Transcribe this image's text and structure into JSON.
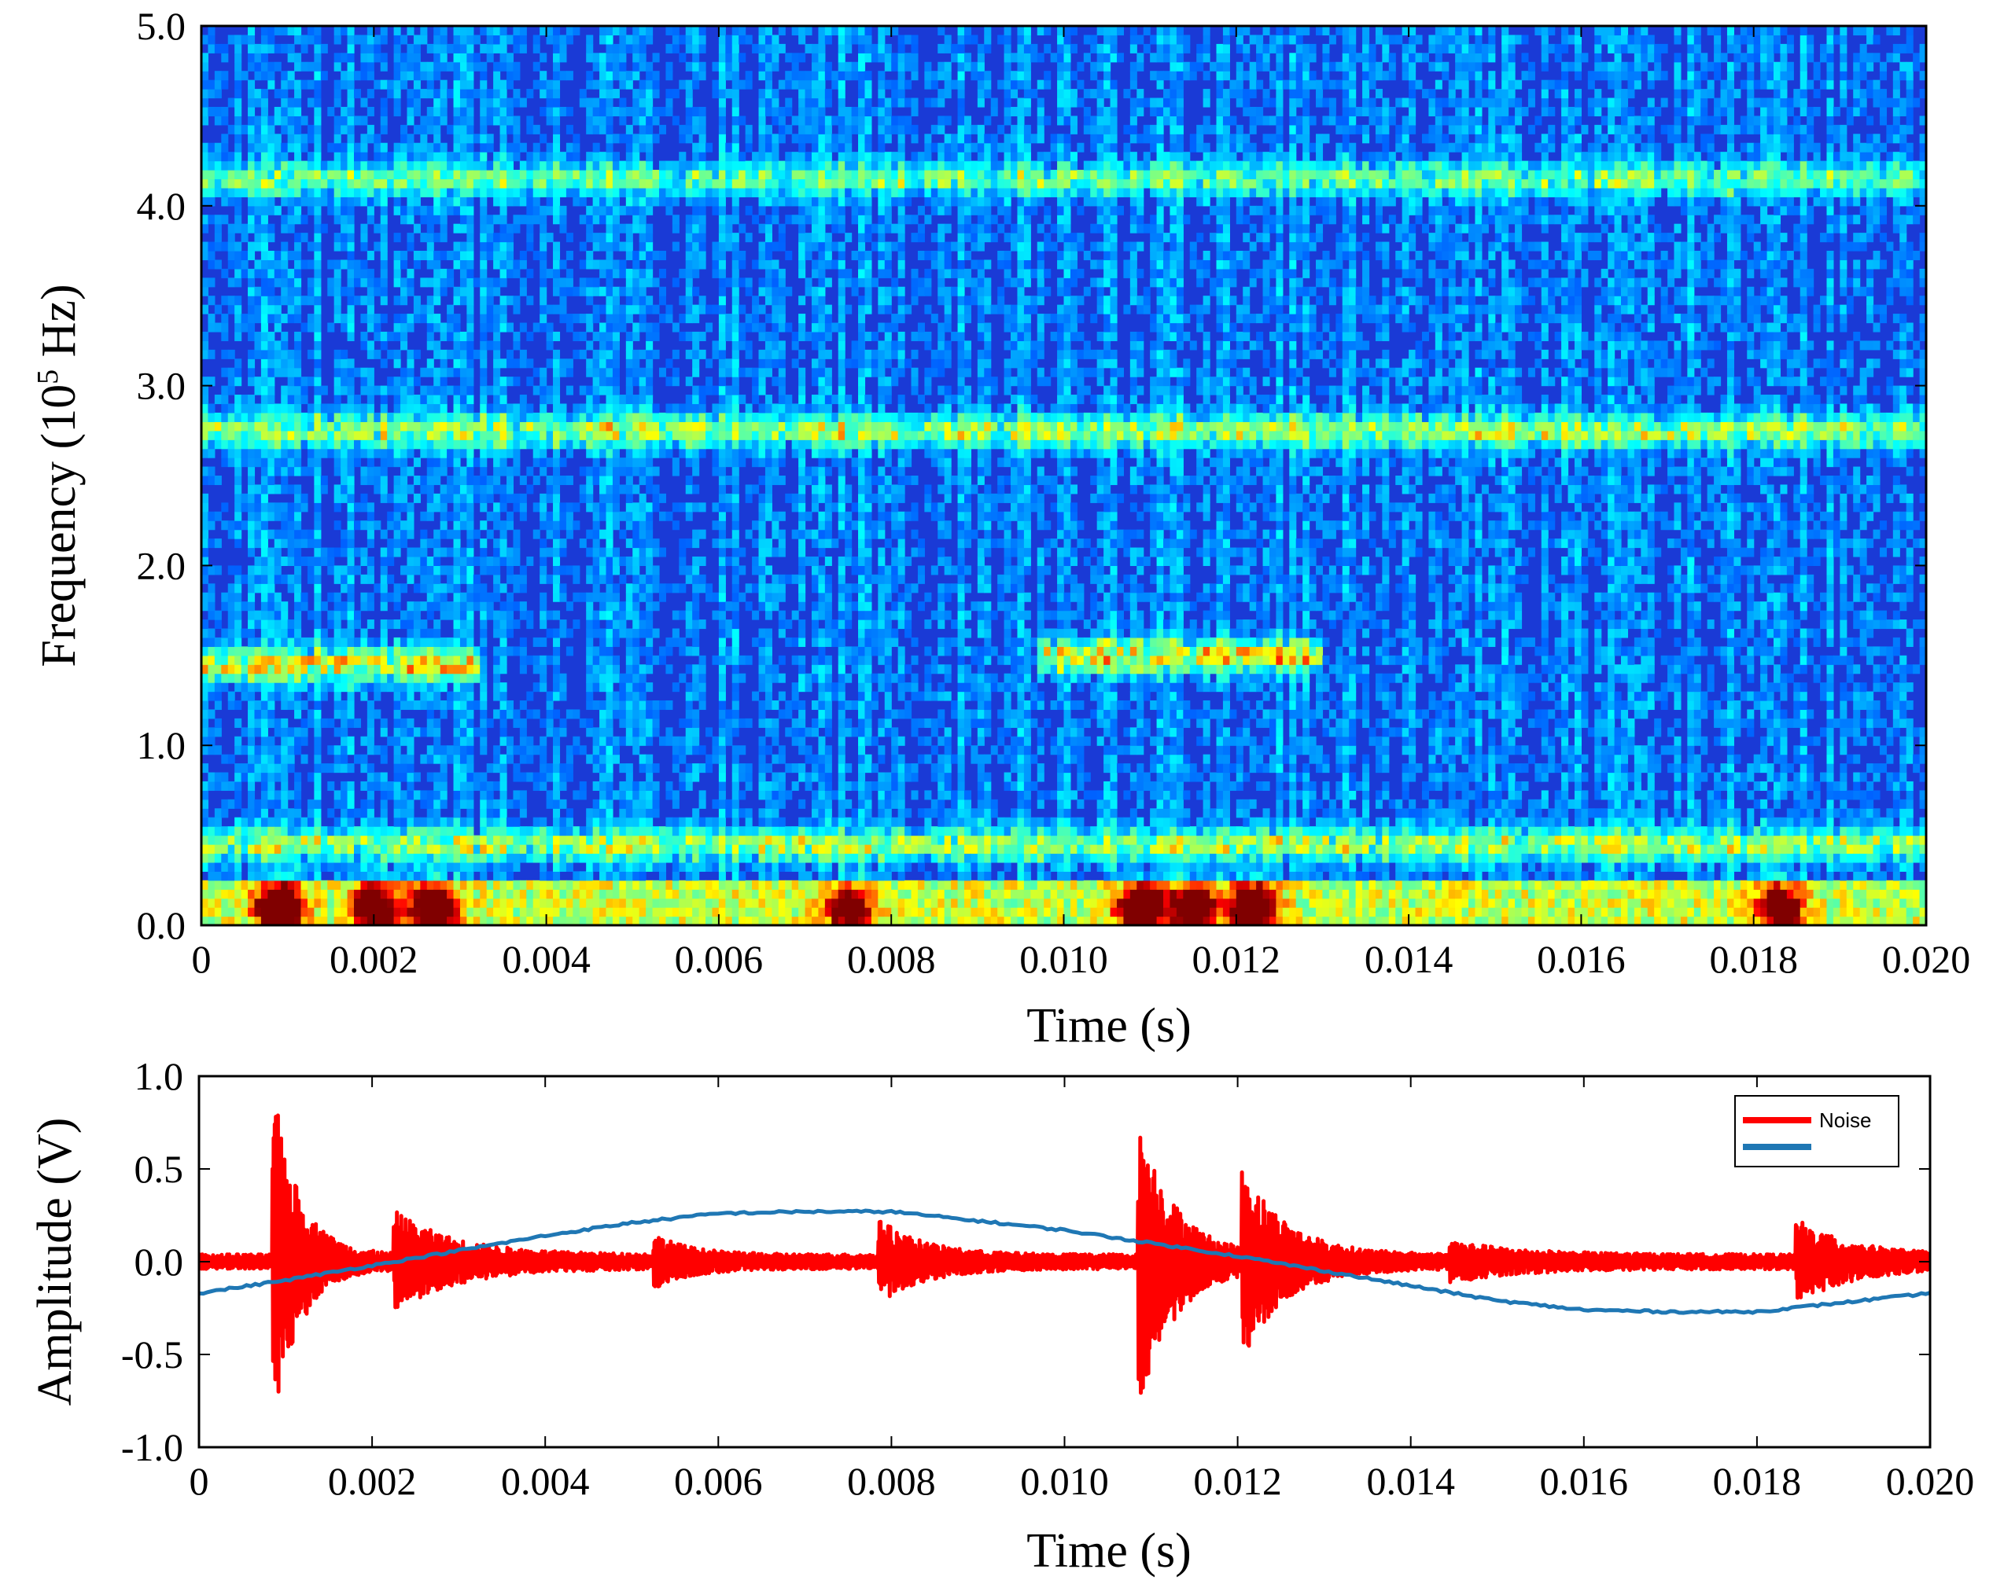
{
  "chart_data": [
    {
      "type": "heatmap",
      "title": "",
      "xlabel": "Time (s)",
      "ylabel": {
        "main": "Frequency (10",
        "sup": "5",
        "tail": " Hz)"
      },
      "xlim": [
        0,
        0.02
      ],
      "ylim": [
        0,
        5.0
      ],
      "x_ticks": [
        "0",
        "0.002",
        "0.004",
        "0.006",
        "0.008",
        "0.010",
        "0.012",
        "0.014",
        "0.016",
        "0.018",
        "0.020"
      ],
      "y_ticks": [
        "0.0",
        "1.0",
        "2.0",
        "3.0",
        "4.0",
        "5.0"
      ],
      "colormap": "jet",
      "grid": false,
      "background_color": "#1a3ad6",
      "bands": [
        {
          "t0": 0.0,
          "t1": 0.0032,
          "f": 1.45,
          "intensity": 0.45
        },
        {
          "t0": 0.0097,
          "t1": 0.013,
          "f": 1.5,
          "intensity": 0.45
        },
        {
          "t0": 0.0,
          "t1": 0.02,
          "f": 2.75,
          "intensity": 0.35
        },
        {
          "t0": 0.0,
          "t1": 0.02,
          "f": 4.15,
          "intensity": 0.28
        },
        {
          "t0": 0.0,
          "t1": 0.02,
          "f": 0.45,
          "intensity": 0.35
        }
      ],
      "hotspots": [
        {
          "t": 0.0009,
          "f": 0.1,
          "intensity": 1.0
        },
        {
          "t": 0.002,
          "f": 0.1,
          "intensity": 0.85
        },
        {
          "t": 0.0027,
          "f": 0.1,
          "intensity": 0.9
        },
        {
          "t": 0.0109,
          "f": 0.1,
          "intensity": 1.0
        },
        {
          "t": 0.0115,
          "f": 0.1,
          "intensity": 0.9
        },
        {
          "t": 0.0122,
          "f": 0.1,
          "intensity": 0.95
        },
        {
          "t": 0.0075,
          "f": 0.1,
          "intensity": 0.7
        },
        {
          "t": 0.0183,
          "f": 0.1,
          "intensity": 0.75
        }
      ]
    },
    {
      "type": "line",
      "title": "",
      "xlabel": "Time (s)",
      "ylabel": "Amplitude (V)",
      "xlim": [
        0,
        0.02
      ],
      "ylim": [
        -1.0,
        1.0
      ],
      "x_ticks": [
        "0",
        "0.002",
        "0.004",
        "0.006",
        "0.008",
        "0.010",
        "0.012",
        "0.014",
        "0.016",
        "0.018",
        "0.020"
      ],
      "y_ticks": [
        "1.0",
        "0.5",
        "0.0",
        "-0.5",
        "-1.0"
      ],
      "grid": false,
      "legend_position": "top-right",
      "series": [
        {
          "name": "Noise",
          "color": "#ff0000",
          "kind": "noise",
          "base_amplitude": 0.04,
          "bursts": [
            {
              "t": 0.0009,
              "amp": 0.78,
              "decay": 0.0003
            },
            {
              "t": 0.0023,
              "amp": 0.22,
              "decay": 0.0007
            },
            {
              "t": 0.0053,
              "amp": 0.1,
              "decay": 0.0004
            },
            {
              "t": 0.0079,
              "amp": 0.18,
              "decay": 0.0005
            },
            {
              "t": 0.0109,
              "amp": 0.7,
              "decay": 0.0004
            },
            {
              "t": 0.0121,
              "amp": 0.42,
              "decay": 0.0005
            },
            {
              "t": 0.0145,
              "amp": 0.07,
              "decay": 0.0008
            },
            {
              "t": 0.0185,
              "amp": 0.18,
              "decay": 0.0006
            }
          ]
        },
        {
          "name": "",
          "color": "#1f77b4",
          "kind": "sine",
          "x": [
            0,
            0.001,
            0.002,
            0.003,
            0.004,
            0.005,
            0.006,
            0.007,
            0.008,
            0.009,
            0.01,
            0.011,
            0.012,
            0.013,
            0.014,
            0.015,
            0.016,
            0.017,
            0.018,
            0.019,
            0.02
          ],
          "y": [
            -0.17,
            -0.1,
            -0.02,
            0.06,
            0.14,
            0.21,
            0.26,
            0.27,
            0.27,
            0.22,
            0.17,
            0.1,
            0.03,
            -0.05,
            -0.13,
            -0.21,
            -0.26,
            -0.27,
            -0.27,
            -0.22,
            -0.17
          ]
        }
      ]
    }
  ]
}
